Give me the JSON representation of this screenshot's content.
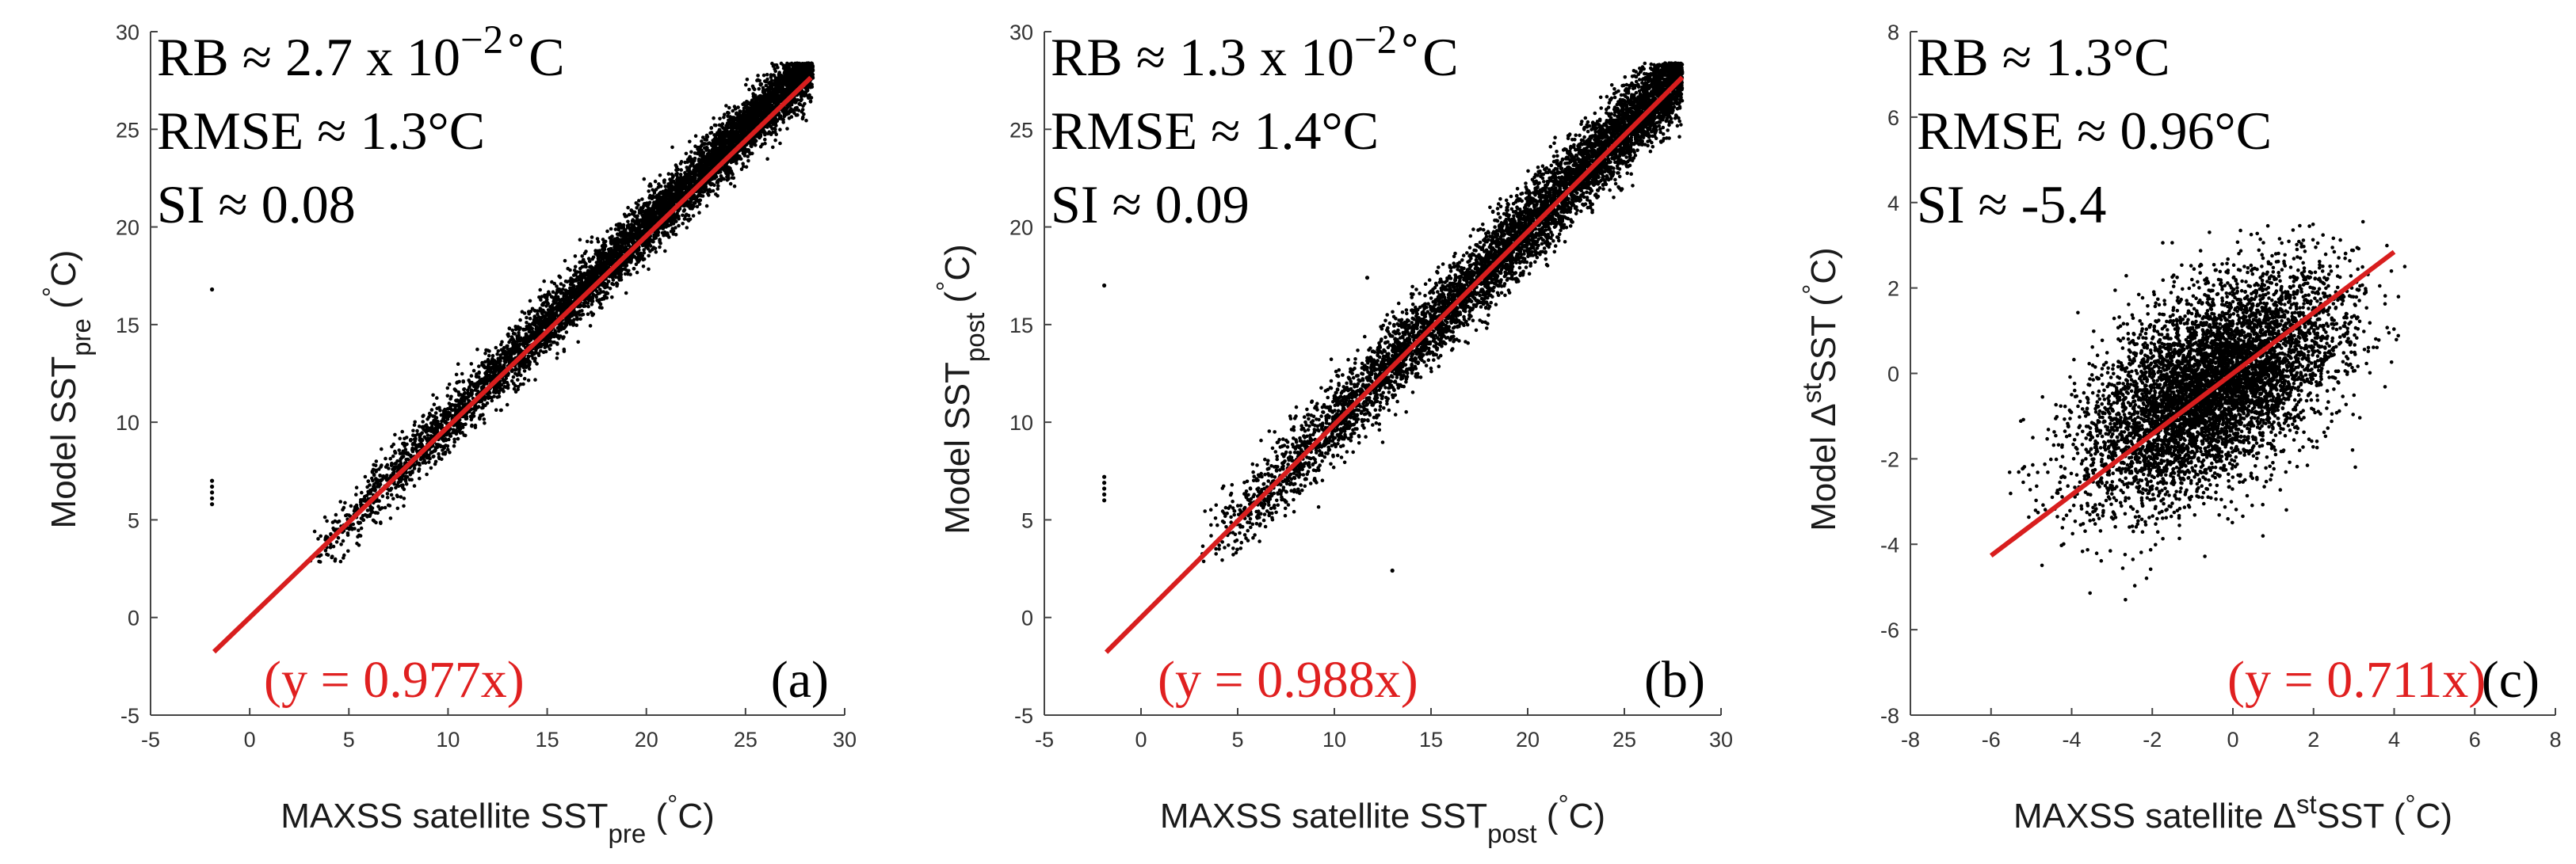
{
  "chart_data": [
    {
      "type": "scatter",
      "panel": "(a)",
      "xlabel": {
        "main": "MAXSS satellite SST",
        "sub": "pre",
        "unit_open": " (",
        "deg": "°",
        "unit_close": "C)"
      },
      "ylabel": {
        "main": "Model SST",
        "sub": "pre",
        "unit_open": " (",
        "deg": "°",
        "unit_close": "C)"
      },
      "xlim": [
        -5,
        30
      ],
      "ylim": [
        -5,
        30
      ],
      "xticks": [
        -5,
        0,
        5,
        10,
        15,
        20,
        25,
        30
      ],
      "yticks": [
        -5,
        0,
        5,
        10,
        15,
        20,
        25,
        30
      ],
      "stats": [
        {
          "name": "RB",
          "prefix": "RB ≈ 2.7 x 10",
          "sup": "−2∘",
          "suffix": "C"
        },
        {
          "name": "RMSE",
          "prefix": "RMSE ≈ 1.3°C",
          "sup": "",
          "suffix": ""
        },
        {
          "name": "SI",
          "prefix": "SI ≈ 0.08",
          "sup": "",
          "suffix": ""
        }
      ],
      "fit": {
        "slope": 0.977,
        "x_range": [
          -1.8,
          28.3
        ],
        "label": "(y = 0.977x)",
        "color": "#d81e1e"
      },
      "cloud": {
        "type": "linear",
        "slope": 1.0,
        "intercept": 0.0,
        "x_range": [
          3.0,
          28.4
        ],
        "x_skew": 0.55,
        "spread": 0.75,
        "y_min": 2.8,
        "count": 6500
      },
      "outliers": [
        [
          -1.9,
          16.8
        ],
        [
          -1.9,
          7.0
        ],
        [
          -1.9,
          6.7
        ],
        [
          -1.9,
          6.4
        ],
        [
          -1.9,
          6.1
        ],
        [
          -1.9,
          5.8
        ]
      ]
    },
    {
      "type": "scatter",
      "panel": "(b)",
      "xlabel": {
        "main": "MAXSS satellite SST",
        "sub": "post",
        "unit_open": " (",
        "deg": "°",
        "unit_close": "C)"
      },
      "ylabel": {
        "main": "Model SST",
        "sub": "post",
        "unit_open": " (",
        "deg": "°",
        "unit_close": "C)"
      },
      "xlim": [
        -5,
        30
      ],
      "ylim": [
        -5,
        30
      ],
      "xticks": [
        -5,
        0,
        5,
        10,
        15,
        20,
        25,
        30
      ],
      "yticks": [
        -5,
        0,
        5,
        10,
        15,
        20,
        25,
        30
      ],
      "stats": [
        {
          "name": "RB",
          "prefix": "RB ≈ 1.3 x 10",
          "sup": "−2∘",
          "suffix": "C"
        },
        {
          "name": "RMSE",
          "prefix": "RMSE ≈ 1.4°C",
          "sup": "",
          "suffix": ""
        },
        {
          "name": "SI",
          "prefix": "SI ≈ 0.09",
          "sup": "",
          "suffix": ""
        }
      ],
      "fit": {
        "slope": 0.988,
        "x_range": [
          -1.8,
          28.0
        ],
        "label": "(y = 0.988x)",
        "color": "#d81e1e"
      },
      "cloud": {
        "type": "linear",
        "slope": 1.0,
        "intercept": 0.0,
        "x_range": [
          3.0,
          28.0
        ],
        "x_skew": 0.55,
        "spread": 1.0,
        "y_min": 2.5,
        "count": 6500
      },
      "outliers": [
        [
          -1.9,
          17.0
        ],
        [
          -1.9,
          7.2
        ],
        [
          -1.9,
          6.9
        ],
        [
          -1.9,
          6.6
        ],
        [
          -1.9,
          6.3
        ],
        [
          -1.9,
          6.0
        ],
        [
          13.0,
          2.4
        ],
        [
          11.7,
          17.4
        ]
      ]
    },
    {
      "type": "scatter",
      "panel": "(c)",
      "xlabel": {
        "main": "MAXSS satellite Δ",
        "sup": "st",
        "after": "SST",
        "unit_open": " (",
        "deg": "°",
        "unit_close": "C)"
      },
      "ylabel": {
        "main": "Model Δ",
        "sup": "st",
        "after": "SST",
        "unit_open": " (",
        "deg": "°",
        "unit_close": "C)"
      },
      "xlim": [
        -8,
        8
      ],
      "ylim": [
        -8,
        8
      ],
      "xticks": [
        -8,
        -6,
        -4,
        -2,
        0,
        2,
        4,
        6,
        8
      ],
      "yticks": [
        -8,
        -6,
        -4,
        -2,
        0,
        2,
        4,
        6,
        8
      ],
      "stats": [
        {
          "name": "RB",
          "prefix": "RB ≈ 1.3°C",
          "sup": "",
          "suffix": ""
        },
        {
          "name": "RMSE",
          "prefix": "RMSE ≈ 0.96°C",
          "sup": "",
          "suffix": ""
        },
        {
          "name": "SI",
          "prefix": "SI ≈ -5.4",
          "sup": "",
          "suffix": ""
        }
      ],
      "fit": {
        "slope": 0.711,
        "x_range": [
          -6.0,
          4.0
        ],
        "label": "(y = 0.711x)",
        "color": "#d81e1e"
      },
      "cloud": {
        "type": "blob",
        "center": [
          -0.5,
          -0.3
        ],
        "sx": 1.6,
        "sy": 1.35,
        "rho": 0.55,
        "x_range": [
          -6.2,
          4.3
        ],
        "y_range": [
          -7.4,
          3.6
        ],
        "count": 6000
      },
      "outliers": []
    }
  ]
}
